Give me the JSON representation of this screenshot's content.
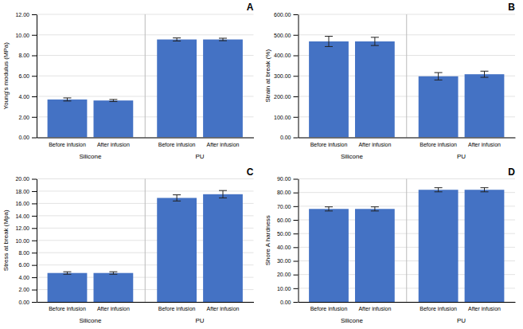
{
  "chart_data": [
    {
      "type": "bar",
      "title": "A",
      "ylabel": "Young's modulus (MPa)",
      "categories": [
        "Before infusion",
        "After infusion",
        "Before infusion",
        "After infusion"
      ],
      "groups": [
        "Silicone",
        "PU"
      ],
      "values": [
        3.7,
        3.6,
        9.55,
        9.55
      ],
      "errors": [
        0.15,
        0.1,
        0.15,
        0.12
      ],
      "color": "#4472C4",
      "ylim": [
        0,
        12
      ],
      "yticks": [
        {
          "value": 0,
          "label": "0.00"
        },
        {
          "value": 2.0,
          "label": "2.00"
        },
        {
          "value": 4.0,
          "label": "4.00"
        },
        {
          "value": 6.0,
          "label": "6.00"
        },
        {
          "value": 8.0,
          "label": "8.00"
        },
        {
          "value": 10.0,
          "label": "10.00"
        },
        {
          "value": 12.0,
          "label": "12.00"
        }
      ],
      "grid": true
    },
    {
      "type": "bar",
      "title": "B",
      "ylabel": "Strain at break (%)",
      "categories": [
        "Before infusion",
        "After infusion",
        "Before infusion",
        "After infusion"
      ],
      "groups": [
        "Silicone",
        "PU"
      ],
      "values": [
        468,
        468,
        298,
        308
      ],
      "errors": [
        25,
        20,
        18,
        15
      ],
      "color": "#4472C4",
      "ylim": [
        0,
        600
      ],
      "yticks": [
        {
          "value": 0,
          "label": "0.00"
        },
        {
          "value": 100.0,
          "label": "100.00"
        },
        {
          "value": 200.0,
          "label": "200.00"
        },
        {
          "value": 300.0,
          "label": "300.00"
        },
        {
          "value": 400.0,
          "label": "400.00"
        },
        {
          "value": 500.0,
          "label": "500.00"
        },
        {
          "value": 600.0,
          "label": "600.00"
        }
      ],
      "grid": true
    },
    {
      "type": "bar",
      "title": "C",
      "ylabel": "Stress at break (Mpa)",
      "categories": [
        "Before infusion",
        "After infusion",
        "Before infusion",
        "After infusion"
      ],
      "groups": [
        "Silicone",
        "PU"
      ],
      "values": [
        4.7,
        4.7,
        16.9,
        17.5
      ],
      "errors": [
        0.2,
        0.2,
        0.5,
        0.6
      ],
      "color": "#4472C4",
      "ylim": [
        0,
        20
      ],
      "yticks": [
        {
          "value": 0,
          "label": "0.00"
        },
        {
          "value": 2.0,
          "label": "2.00"
        },
        {
          "value": 4.0,
          "label": "4.00"
        },
        {
          "value": 6.0,
          "label": "6.00"
        },
        {
          "value": 8.0,
          "label": "8.00"
        },
        {
          "value": 10.0,
          "label": "10.00"
        },
        {
          "value": 12.0,
          "label": "12.00"
        },
        {
          "value": 14.0,
          "label": "14.00"
        },
        {
          "value": 16.0,
          "label": "16.00"
        },
        {
          "value": 18.0,
          "label": "18.00"
        },
        {
          "value": 20.0,
          "label": "20.00"
        }
      ],
      "grid": true
    },
    {
      "type": "bar",
      "title": "D",
      "ylabel": "Shore A hardness",
      "categories": [
        "Before infusion",
        "After infusion",
        "Before infusion",
        "After infusion"
      ],
      "groups": [
        "Silicone",
        "PU"
      ],
      "values": [
        68,
        68,
        82,
        82
      ],
      "errors": [
        1.5,
        1.5,
        1.5,
        1.5
      ],
      "color": "#4472C4",
      "ylim": [
        0,
        90
      ],
      "yticks": [
        {
          "value": 0,
          "label": "0.00"
        },
        {
          "value": 10.0,
          "label": "10.00"
        },
        {
          "value": 20.0,
          "label": "20.00"
        },
        {
          "value": 30.0,
          "label": "30.00"
        },
        {
          "value": 40.0,
          "label": "40.00"
        },
        {
          "value": 50.0,
          "label": "50.00"
        },
        {
          "value": 60.0,
          "label": "60.00"
        },
        {
          "value": 70.0,
          "label": "70.00"
        },
        {
          "value": 80.0,
          "label": "80.00"
        },
        {
          "value": 90.0,
          "label": "90.00"
        }
      ],
      "grid": true
    }
  ]
}
